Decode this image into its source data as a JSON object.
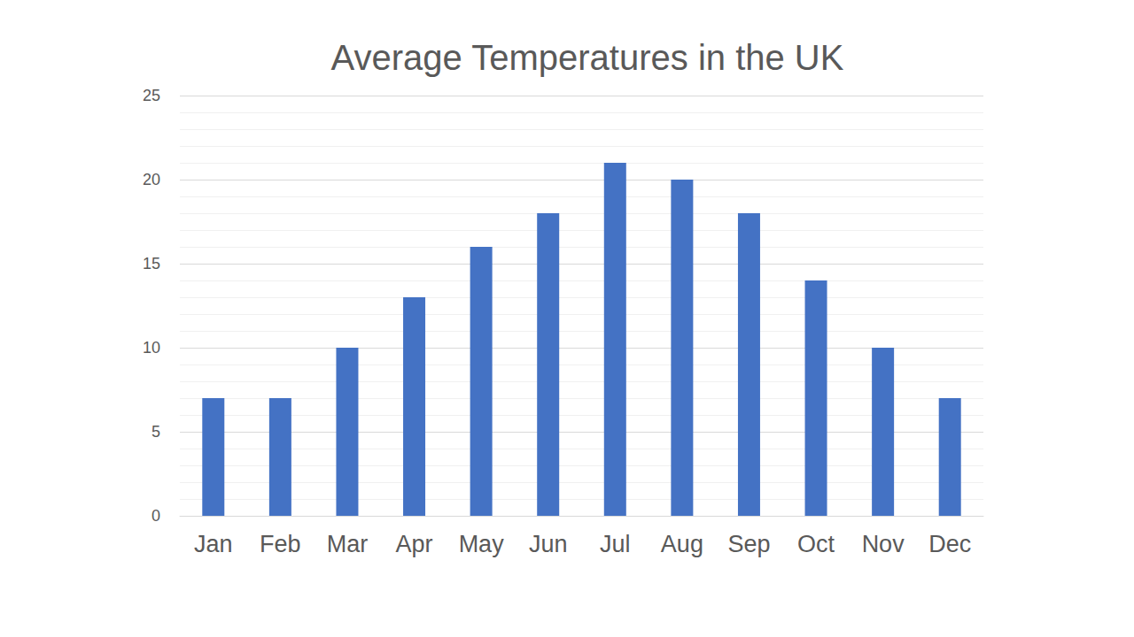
{
  "chart_data": {
    "type": "bar",
    "title": "Average Temperatures in the UK",
    "categories": [
      "Jan",
      "Feb",
      "Mar",
      "Apr",
      "May",
      "Jun",
      "Jul",
      "Aug",
      "Sep",
      "Oct",
      "Nov",
      "Dec"
    ],
    "values": [
      7,
      7,
      10,
      13,
      16,
      18,
      21,
      20,
      18,
      14,
      10,
      7
    ],
    "color": "#4472c4",
    "ylim": [
      0,
      25
    ],
    "yticks": [
      0,
      5,
      10,
      15,
      20,
      25
    ],
    "grid": true
  }
}
